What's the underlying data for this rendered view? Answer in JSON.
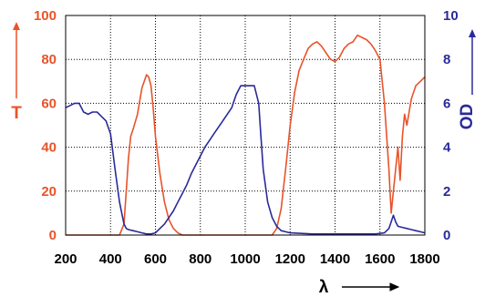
{
  "chart_data": {
    "type": "line",
    "title": "",
    "xlabel": "λ",
    "ylabel_left": "T",
    "ylabel_right": "OD",
    "xlim": [
      200,
      1800
    ],
    "ylim_left": [
      0,
      100
    ],
    "ylim_right": [
      0,
      10
    ],
    "x_ticks": [
      "200",
      "400",
      "600",
      "800",
      "1000",
      "1200",
      "1400",
      "1600",
      "1800"
    ],
    "y_left_ticks": [
      "0",
      "20",
      "40",
      "60",
      "80",
      "100"
    ],
    "y_right_ticks": [
      "0",
      "2",
      "4",
      "6",
      "8",
      "10"
    ],
    "grid": true,
    "colors": {
      "T": "#e8532a",
      "OD": "#2a2a9a"
    },
    "series": [
      {
        "axis": "left",
        "color": "#e8532a",
        "x": [
          200,
          440,
          460,
          470,
          480,
          490,
          500,
          520,
          540,
          560,
          570,
          580,
          590,
          600,
          620,
          640,
          660,
          680,
          700,
          720,
          760,
          800,
          1000,
          1120,
          1140,
          1160,
          1180,
          1200,
          1220,
          1240,
          1260,
          1280,
          1300,
          1320,
          1340,
          1360,
          1380,
          1400,
          1420,
          1440,
          1460,
          1480,
          1500,
          1520,
          1540,
          1560,
          1580,
          1600,
          1620,
          1640,
          1650,
          1660,
          1670,
          1680,
          1690,
          1700,
          1710,
          1720,
          1740,
          1760,
          1780,
          1800
        ],
        "y": [
          0,
          0,
          5,
          20,
          35,
          45,
          48,
          55,
          67,
          73,
          72,
          68,
          58,
          45,
          28,
          15,
          7,
          3,
          1,
          0,
          0,
          0,
          0,
          0,
          3,
          12,
          30,
          50,
          65,
          75,
          80,
          85,
          87,
          88,
          86,
          83,
          80,
          79,
          81,
          85,
          87,
          88,
          91,
          90,
          89,
          87,
          84,
          80,
          60,
          30,
          10,
          20,
          30,
          40,
          25,
          45,
          55,
          50,
          62,
          68,
          70,
          72
        ]
      },
      {
        "axis": "right",
        "color": "#2a2a9a",
        "x": [
          200,
          220,
          240,
          260,
          280,
          300,
          320,
          340,
          360,
          380,
          400,
          420,
          440,
          460,
          470,
          480,
          500,
          520,
          540,
          560,
          580,
          600,
          620,
          640,
          660,
          680,
          700,
          720,
          740,
          760,
          780,
          800,
          820,
          840,
          860,
          880,
          900,
          920,
          940,
          960,
          980,
          1000,
          1020,
          1040,
          1060,
          1070,
          1080,
          1100,
          1120,
          1140,
          1160,
          1200,
          1300,
          1400,
          1500,
          1580,
          1620,
          1640,
          1650,
          1660,
          1670,
          1680,
          1700,
          1720,
          1740,
          1760,
          1780,
          1800
        ],
        "y": [
          5.8,
          5.9,
          6.0,
          6.0,
          5.6,
          5.5,
          5.6,
          5.6,
          5.4,
          5.2,
          4.6,
          3.0,
          1.5,
          0.5,
          0.3,
          0.25,
          0.2,
          0.15,
          0.1,
          0.05,
          0.05,
          0.1,
          0.3,
          0.5,
          0.8,
          1.1,
          1.5,
          1.9,
          2.3,
          2.8,
          3.2,
          3.6,
          4.0,
          4.3,
          4.6,
          4.9,
          5.2,
          5.5,
          5.8,
          6.4,
          6.8,
          6.8,
          6.8,
          6.8,
          6.0,
          4.5,
          3.0,
          1.5,
          0.8,
          0.4,
          0.2,
          0.1,
          0.05,
          0.05,
          0.05,
          0.05,
          0.1,
          0.3,
          0.6,
          0.9,
          0.6,
          0.4,
          0.35,
          0.3,
          0.25,
          0.2,
          0.15,
          0.1
        ]
      }
    ]
  }
}
